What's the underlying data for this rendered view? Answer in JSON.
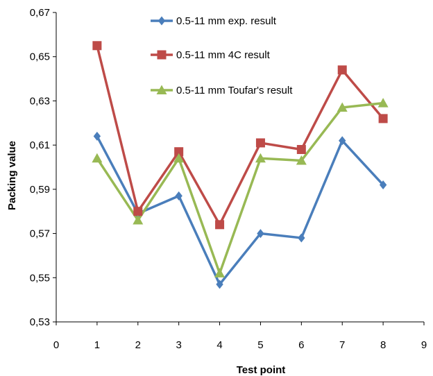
{
  "chart_data": {
    "type": "line",
    "title": "",
    "xlabel": "Test point",
    "ylabel": "Packing value",
    "xlim": [
      0,
      9
    ],
    "ylim": [
      0.53,
      0.67
    ],
    "x_ticks": [
      "0",
      "1",
      "2",
      "3",
      "4",
      "5",
      "6",
      "7",
      "8",
      "9"
    ],
    "y_ticks": [
      "0,53",
      "0,55",
      "0,57",
      "0,59",
      "0,61",
      "0,63",
      "0,65",
      "0,67"
    ],
    "grid": false,
    "legend_position": "top-center",
    "x": [
      1,
      2,
      3,
      4,
      5,
      6,
      7,
      8
    ],
    "series": [
      {
        "name": "0.5-11 mm exp. result",
        "color": "#4a7ebb",
        "marker": "diamond",
        "values": [
          0.614,
          0.579,
          0.587,
          0.547,
          0.57,
          0.568,
          0.612,
          0.592
        ]
      },
      {
        "name": "0.5-11 mm 4C result",
        "color": "#be4b48",
        "marker": "square",
        "values": [
          0.655,
          0.58,
          0.607,
          0.574,
          0.611,
          0.608,
          0.644,
          0.622
        ]
      },
      {
        "name": "0.5-11 mm Toufar's result",
        "color": "#98b954",
        "marker": "triangle",
        "values": [
          0.604,
          0.576,
          0.604,
          0.552,
          0.604,
          0.603,
          0.627,
          0.629
        ]
      }
    ]
  }
}
